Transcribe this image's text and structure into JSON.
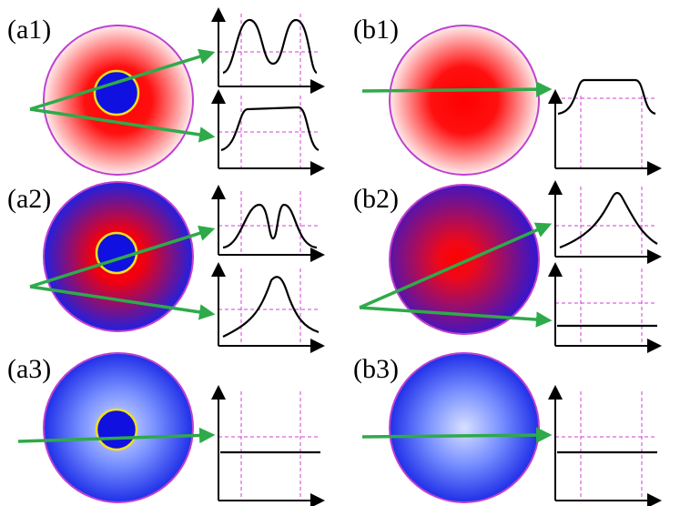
{
  "panels": {
    "a1": "(a1)",
    "a2": "(a2)",
    "a3": "(a3)",
    "b1": "(b1)",
    "b2": "(b2)",
    "b3": "(b3)"
  }
}
